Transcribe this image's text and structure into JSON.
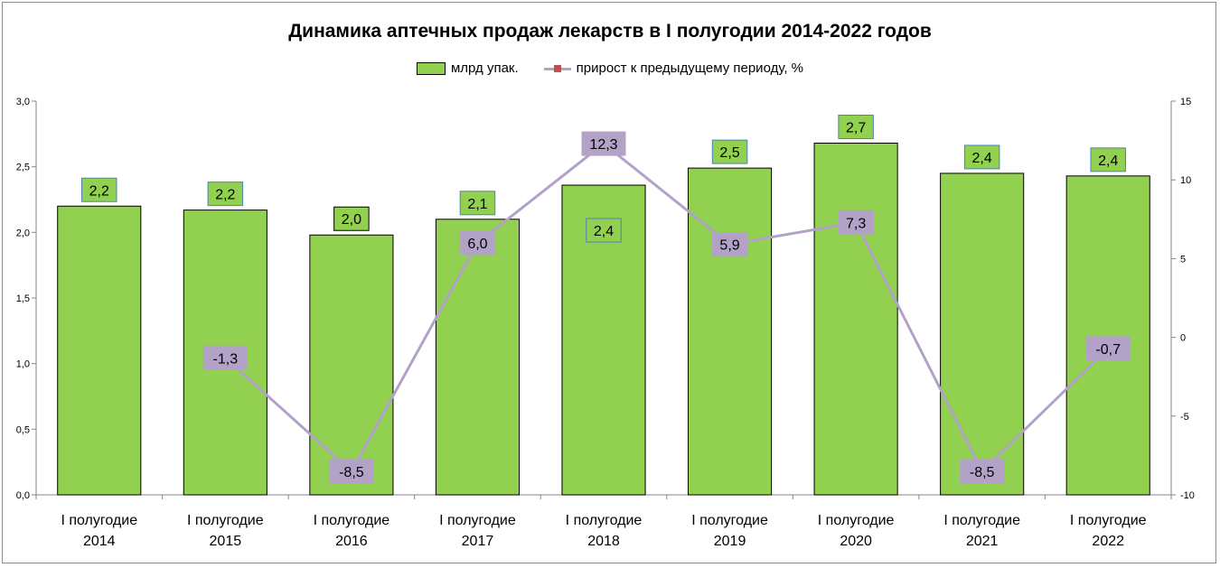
{
  "chart_data": {
    "type": "bar",
    "title": "Динамика аптечных продаж лекарств в I полугодии 2014-2022 годов",
    "categories": [
      [
        "I полугодие",
        "2014"
      ],
      [
        "I полугодие",
        "2015"
      ],
      [
        "I полугодие",
        "2016"
      ],
      [
        "I полугодие",
        "2017"
      ],
      [
        "I полугодие",
        "2018"
      ],
      [
        "I полугодие",
        "2019"
      ],
      [
        "I полугодие",
        "2020"
      ],
      [
        "I полугодие",
        "2021"
      ],
      [
        "I полугодие",
        "2022"
      ]
    ],
    "series": [
      {
        "name": "млрд упак.",
        "type": "bar",
        "axis": "left",
        "color": "#92d050",
        "values": [
          2.2,
          2.17,
          1.98,
          2.1,
          2.36,
          2.49,
          2.68,
          2.45,
          2.43
        ],
        "labels": [
          "2,2",
          "2,2",
          "2,0",
          "2,1",
          "2,4",
          "2,5",
          "2,7",
          "2,4",
          "2,4"
        ]
      },
      {
        "name": "прирост к предыдущему периоду, %",
        "type": "line",
        "axis": "right",
        "color": "#b3a2c7",
        "marker_color": "#c0504d",
        "values": [
          null,
          -1.3,
          -8.5,
          6.0,
          12.3,
          5.9,
          7.3,
          -8.5,
          -0.7
        ],
        "labels": [
          "",
          "-1,3",
          "-8,5",
          "6,0",
          "12,3",
          "5,9",
          "7,3",
          "-8,5",
          "-0,7"
        ]
      }
    ],
    "ylim": [
      0,
      3.0
    ],
    "yticks": [
      "0,0",
      "0,5",
      "1,0",
      "1,5",
      "2,0",
      "2,5",
      "3,0"
    ],
    "y2lim": [
      -10,
      15
    ],
    "y2ticks": [
      "-10",
      "-5",
      "0",
      "5",
      "10",
      "15"
    ],
    "grid": false,
    "legend_position": "top"
  }
}
